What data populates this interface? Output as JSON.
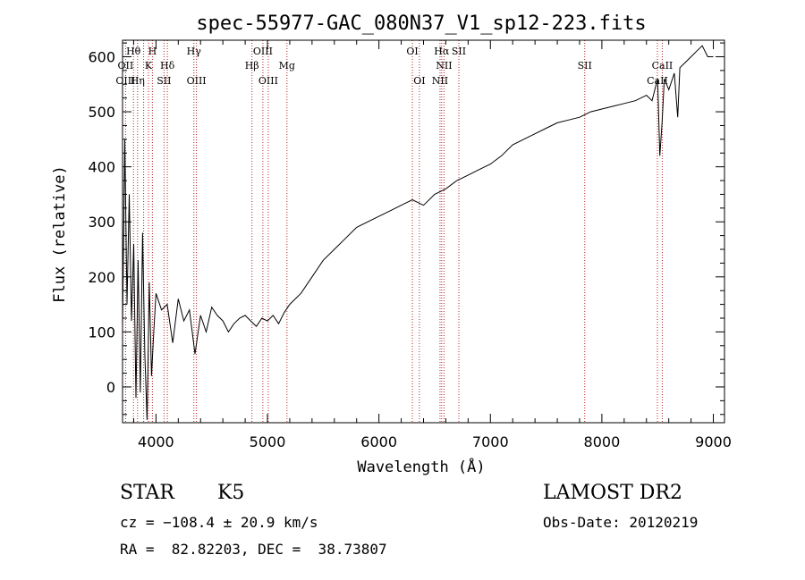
{
  "chart_data": {
    "type": "line",
    "title": "spec-55977-GAC_080N37_V1_sp12-223.fits",
    "xlabel": "Wavelength (Å)",
    "ylabel": "Flux (relative)",
    "xlim": [
      3700,
      9100
    ],
    "ylim": [
      -65,
      630
    ],
    "x_ticks": [
      4000,
      5000,
      6000,
      7000,
      8000,
      9000
    ],
    "y_ticks": [
      0,
      100,
      200,
      300,
      400,
      500,
      600
    ],
    "grid": false,
    "series": [
      {
        "x": [
          3700,
          3720,
          3740,
          3760,
          3780,
          3800,
          3820,
          3840,
          3860,
          3880,
          3900,
          3920,
          3940,
          3960,
          3980,
          4000,
          4050,
          4100,
          4150,
          4200,
          4250,
          4300,
          4350,
          4400,
          4450,
          4500,
          4550,
          4600,
          4650,
          4700,
          4750,
          4800,
          4850,
          4900,
          4950,
          5000,
          5050,
          5100,
          5150,
          5200,
          5300,
          5400,
          5500,
          5600,
          5700,
          5800,
          5900,
          6000,
          6100,
          6200,
          6300,
          6400,
          6500,
          6600,
          6700,
          6800,
          6900,
          7000,
          7100,
          7200,
          7300,
          7400,
          7500,
          7600,
          7700,
          7800,
          7900,
          8000,
          8100,
          8200,
          8300,
          8400,
          8450,
          8500,
          8520,
          8540,
          8560,
          8600,
          8650,
          8680,
          8700,
          8750,
          8800,
          8850,
          8900,
          8950,
          9000
        ],
        "y": [
          110,
          450,
          150,
          350,
          120,
          260,
          -20,
          230,
          -10,
          280,
          60,
          -60,
          190,
          20,
          100,
          170,
          140,
          150,
          80,
          160,
          120,
          140,
          60,
          130,
          100,
          145,
          130,
          120,
          100,
          115,
          125,
          130,
          120,
          110,
          125,
          120,
          130,
          115,
          135,
          150,
          170,
          200,
          230,
          250,
          270,
          290,
          300,
          310,
          320,
          330,
          340,
          330,
          350,
          360,
          375,
          385,
          395,
          405,
          420,
          440,
          450,
          460,
          470,
          480,
          485,
          490,
          500,
          505,
          510,
          515,
          520,
          530,
          520,
          560,
          420,
          480,
          560,
          540,
          570,
          490,
          580,
          590,
          600,
          610,
          620,
          600,
          600
        ]
      }
    ],
    "spectral_lines": [
      {
        "label": "Hθ",
        "x": 3798,
        "row": 0
      },
      {
        "label": "H",
        "x": 3968,
        "row": 0
      },
      {
        "label": "Hγ",
        "x": 4340,
        "row": 0
      },
      {
        "label": "OIII",
        "x": 4959,
        "row": 0
      },
      {
        "label": "OI",
        "x": 6300,
        "row": 0
      },
      {
        "label": "Hα",
        "x": 6563,
        "row": 0
      },
      {
        "label": "SII",
        "x": 6717,
        "row": 0
      },
      {
        "label": "SII",
        "x": 7846,
        "row": 1
      },
      {
        "label": "OII",
        "x": 3727,
        "row": 1
      },
      {
        "label": "K",
        "x": 3933,
        "row": 1
      },
      {
        "label": "Hδ",
        "x": 4102,
        "row": 1
      },
      {
        "label": "Hβ",
        "x": 4861,
        "row": 1
      },
      {
        "label": "Mg",
        "x": 5175,
        "row": 1
      },
      {
        "label": "NII",
        "x": 6584,
        "row": 1
      },
      {
        "label": "CaII",
        "x": 8542,
        "row": 1
      },
      {
        "label": "OIII",
        "x": 3727,
        "row": 2
      },
      {
        "label": "Hη",
        "x": 3835,
        "row": 2
      },
      {
        "label": "SII",
        "x": 4072,
        "row": 2
      },
      {
        "label": "OIII",
        "x": 4363,
        "row": 2
      },
      {
        "label": "OIII",
        "x": 5007,
        "row": 2
      },
      {
        "label": "OI",
        "x": 6363,
        "row": 2
      },
      {
        "label": "NII",
        "x": 6548,
        "row": 2
      },
      {
        "label": "CaII",
        "x": 8498,
        "row": 2
      }
    ],
    "line_marker_x": [
      3727,
      3798,
      3835,
      3889,
      3933,
      3968,
      4072,
      4102,
      4340,
      4363,
      4861,
      4959,
      5007,
      5175,
      6300,
      6363,
      6548,
      6563,
      6584,
      6717,
      7846,
      8498,
      8542
    ]
  },
  "info": {
    "object_type": "STAR",
    "subclass": "K5",
    "survey": "LAMOST DR2",
    "cz": "cz = −108.4 ± 20.9 km/s",
    "obs_date": "Obs-Date: 20120219",
    "coords": "RA =  82.82203, DEC =  38.73807"
  },
  "colors": {
    "spectrum": "#000000",
    "line_marker": "#b22222",
    "background": "#ffffff"
  }
}
